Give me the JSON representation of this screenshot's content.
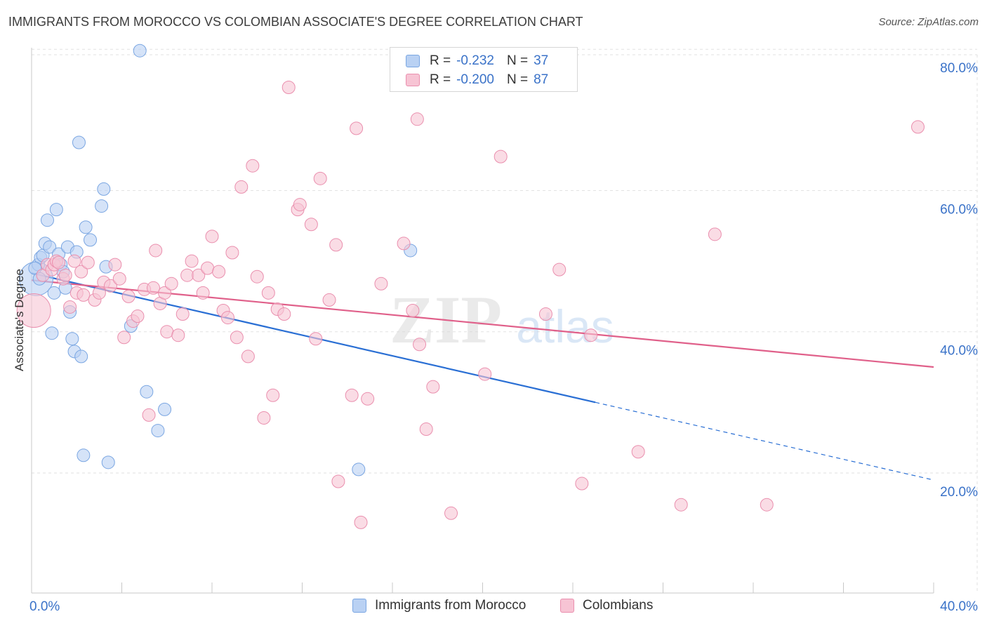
{
  "header": {
    "title": "IMMIGRANTS FROM MOROCCO VS COLOMBIAN ASSOCIATE'S DEGREE CORRELATION CHART",
    "source": "Source: ZipAtlas.com"
  },
  "legend": {
    "rows": [
      {
        "r_label": "R =",
        "r_value": "-0.232",
        "n_label": "N =",
        "n_value": "37"
      },
      {
        "r_label": "R =",
        "r_value": "-0.200",
        "n_label": "N =",
        "n_value": "87"
      }
    ]
  },
  "watermark": {
    "zip": "ZIP",
    "atlas": "atlas"
  },
  "colors": {
    "blue_fill": "#b9d1f3",
    "blue_stroke": "#7aa6e2",
    "blue_line": "#2a6fd4",
    "pink_fill": "#f7c4d4",
    "pink_stroke": "#ea8fae",
    "pink_line": "#e0608a",
    "axis_text": "#3a72c8",
    "grid": "#e2e2e2"
  },
  "chart_data": {
    "type": "scatter",
    "title": "IMMIGRANTS FROM MOROCCO VS COLOMBIAN ASSOCIATE'S DEGREE CORRELATION CHART",
    "xlabel": "",
    "ylabel": "Associate's Degree",
    "xlim": [
      0,
      40
    ],
    "ylim": [
      3,
      83
    ],
    "x_tick_labels": [
      "0.0%",
      "40.0%"
    ],
    "y_ticks": [
      20,
      40,
      60,
      80
    ],
    "y_tick_labels": [
      "20.0%",
      "40.0%",
      "60.0%",
      "80.0%"
    ],
    "grid": true,
    "legend_position": "top-center",
    "series": [
      {
        "name": "Immigrants from Morocco",
        "color": "blue",
        "r": -0.232,
        "n": 37,
        "trend": {
          "x0": 0,
          "y0": 48.3,
          "x1": 25,
          "y1": 30.0,
          "dashed_to_x": 40,
          "dashed_to_y": 19.0
        },
        "points": [
          [
            0.2,
            47.5,
            24
          ],
          [
            0.3,
            49.5,
            9
          ],
          [
            0.4,
            50.5,
            9
          ],
          [
            0.5,
            50.8,
            9
          ],
          [
            0.6,
            52.5,
            9
          ],
          [
            0.7,
            55.8,
            9
          ],
          [
            0.8,
            52.0,
            9
          ],
          [
            0.9,
            39.8,
            9
          ],
          [
            1.0,
            45.5,
            9
          ],
          [
            1.1,
            57.3,
            9
          ],
          [
            1.2,
            51.0,
            9
          ],
          [
            1.3,
            49.5,
            9
          ],
          [
            1.4,
            48.5,
            9
          ],
          [
            1.5,
            46.2,
            9
          ],
          [
            1.6,
            52.0,
            9
          ],
          [
            1.7,
            42.8,
            9
          ],
          [
            1.8,
            39.0,
            9
          ],
          [
            1.9,
            37.2,
            9
          ],
          [
            2.0,
            51.3,
            9
          ],
          [
            2.1,
            66.8,
            9
          ],
          [
            2.2,
            36.5,
            9
          ],
          [
            2.3,
            22.5,
            9
          ],
          [
            2.4,
            54.8,
            9
          ],
          [
            2.6,
            53.0,
            9
          ],
          [
            3.1,
            57.8,
            9
          ],
          [
            3.2,
            60.2,
            9
          ],
          [
            3.3,
            49.2,
            9
          ],
          [
            3.4,
            21.5,
            9
          ],
          [
            4.4,
            40.8,
            9
          ],
          [
            4.8,
            79.8,
            9
          ],
          [
            5.1,
            31.5,
            9
          ],
          [
            5.6,
            26.0,
            9
          ],
          [
            5.9,
            29.0,
            9
          ],
          [
            14.5,
            20.5,
            9
          ],
          [
            16.8,
            51.5,
            9
          ],
          [
            0.15,
            49.0,
            9
          ],
          [
            0.35,
            47.5,
            9
          ]
        ]
      },
      {
        "name": "Colombians",
        "color": "pink",
        "r": -0.2,
        "n": 87,
        "trend": {
          "x0": 0,
          "y0": 47.3,
          "x1": 40,
          "y1": 35.0
        },
        "points": [
          [
            0.1,
            43.0,
            24
          ],
          [
            0.5,
            48.0,
            9
          ],
          [
            0.7,
            49.5,
            9
          ],
          [
            0.9,
            48.8,
            9
          ],
          [
            1.0,
            49.5,
            9
          ],
          [
            1.1,
            50.0,
            9
          ],
          [
            1.2,
            49.8,
            9
          ],
          [
            1.4,
            47.5,
            9
          ],
          [
            1.5,
            48.0,
            9
          ],
          [
            1.7,
            43.5,
            9
          ],
          [
            1.9,
            50.0,
            9
          ],
          [
            2.0,
            45.5,
            9
          ],
          [
            2.2,
            48.5,
            9
          ],
          [
            2.3,
            45.2,
            9
          ],
          [
            2.5,
            49.8,
            9
          ],
          [
            2.8,
            44.5,
            9
          ],
          [
            3.0,
            45.5,
            9
          ],
          [
            3.2,
            47.0,
            9
          ],
          [
            3.5,
            46.5,
            9
          ],
          [
            3.7,
            49.5,
            9
          ],
          [
            3.9,
            47.5,
            9
          ],
          [
            4.1,
            39.2,
            9
          ],
          [
            4.3,
            45.0,
            9
          ],
          [
            4.5,
            41.5,
            9
          ],
          [
            4.7,
            42.2,
            9
          ],
          [
            5.0,
            46.0,
            9
          ],
          [
            5.2,
            28.2,
            9
          ],
          [
            5.4,
            46.2,
            9
          ],
          [
            5.5,
            51.5,
            9
          ],
          [
            5.7,
            44.0,
            9
          ],
          [
            5.9,
            45.5,
            9
          ],
          [
            6.0,
            40.0,
            9
          ],
          [
            6.2,
            46.8,
            9
          ],
          [
            6.5,
            39.5,
            9
          ],
          [
            6.7,
            42.5,
            9
          ],
          [
            6.9,
            48.0,
            9
          ],
          [
            7.1,
            50.0,
            9
          ],
          [
            7.4,
            48.0,
            9
          ],
          [
            7.6,
            45.5,
            9
          ],
          [
            7.8,
            49.0,
            9
          ],
          [
            8.0,
            53.5,
            9
          ],
          [
            8.3,
            48.5,
            9
          ],
          [
            8.5,
            43.0,
            9
          ],
          [
            8.7,
            42.0,
            9
          ],
          [
            8.9,
            51.2,
            9
          ],
          [
            9.1,
            39.2,
            9
          ],
          [
            9.3,
            60.5,
            9
          ],
          [
            9.6,
            36.5,
            9
          ],
          [
            9.8,
            63.5,
            9
          ],
          [
            10.0,
            47.8,
            9
          ],
          [
            10.3,
            27.8,
            9
          ],
          [
            10.5,
            45.5,
            9
          ],
          [
            10.7,
            31.0,
            9
          ],
          [
            10.9,
            43.2,
            9
          ],
          [
            11.2,
            42.5,
            9
          ],
          [
            11.4,
            74.6,
            9
          ],
          [
            11.8,
            57.3,
            9
          ],
          [
            11.9,
            58.0,
            9
          ],
          [
            12.4,
            55.2,
            9
          ],
          [
            12.6,
            39.0,
            9
          ],
          [
            12.8,
            61.7,
            9
          ],
          [
            13.2,
            44.5,
            9
          ],
          [
            13.5,
            52.3,
            9
          ],
          [
            13.6,
            18.8,
            9
          ],
          [
            14.2,
            31.0,
            9
          ],
          [
            14.4,
            68.8,
            9
          ],
          [
            14.6,
            13.0,
            9
          ],
          [
            14.9,
            30.5,
            9
          ],
          [
            15.5,
            46.8,
            9
          ],
          [
            16.5,
            52.5,
            9
          ],
          [
            16.9,
            43.0,
            9
          ],
          [
            17.1,
            70.1,
            9
          ],
          [
            17.2,
            38.2,
            9
          ],
          [
            17.5,
            26.2,
            9
          ],
          [
            17.8,
            32.2,
            9
          ],
          [
            18.6,
            14.3,
            9
          ],
          [
            20.1,
            34.0,
            9
          ],
          [
            20.8,
            64.8,
            9
          ],
          [
            22.8,
            42.5,
            9
          ],
          [
            23.4,
            48.8,
            9
          ],
          [
            24.4,
            18.5,
            9
          ],
          [
            24.8,
            39.5,
            9
          ],
          [
            26.9,
            23.0,
            9
          ],
          [
            28.8,
            15.5,
            9
          ],
          [
            30.3,
            53.8,
            9
          ],
          [
            32.6,
            15.5,
            9
          ],
          [
            39.3,
            69.0,
            9
          ]
        ]
      }
    ]
  },
  "bottom_legend": {
    "items": [
      {
        "label": "Immigrants from Morocco",
        "color": "blue"
      },
      {
        "label": "Colombians",
        "color": "pink"
      }
    ]
  }
}
